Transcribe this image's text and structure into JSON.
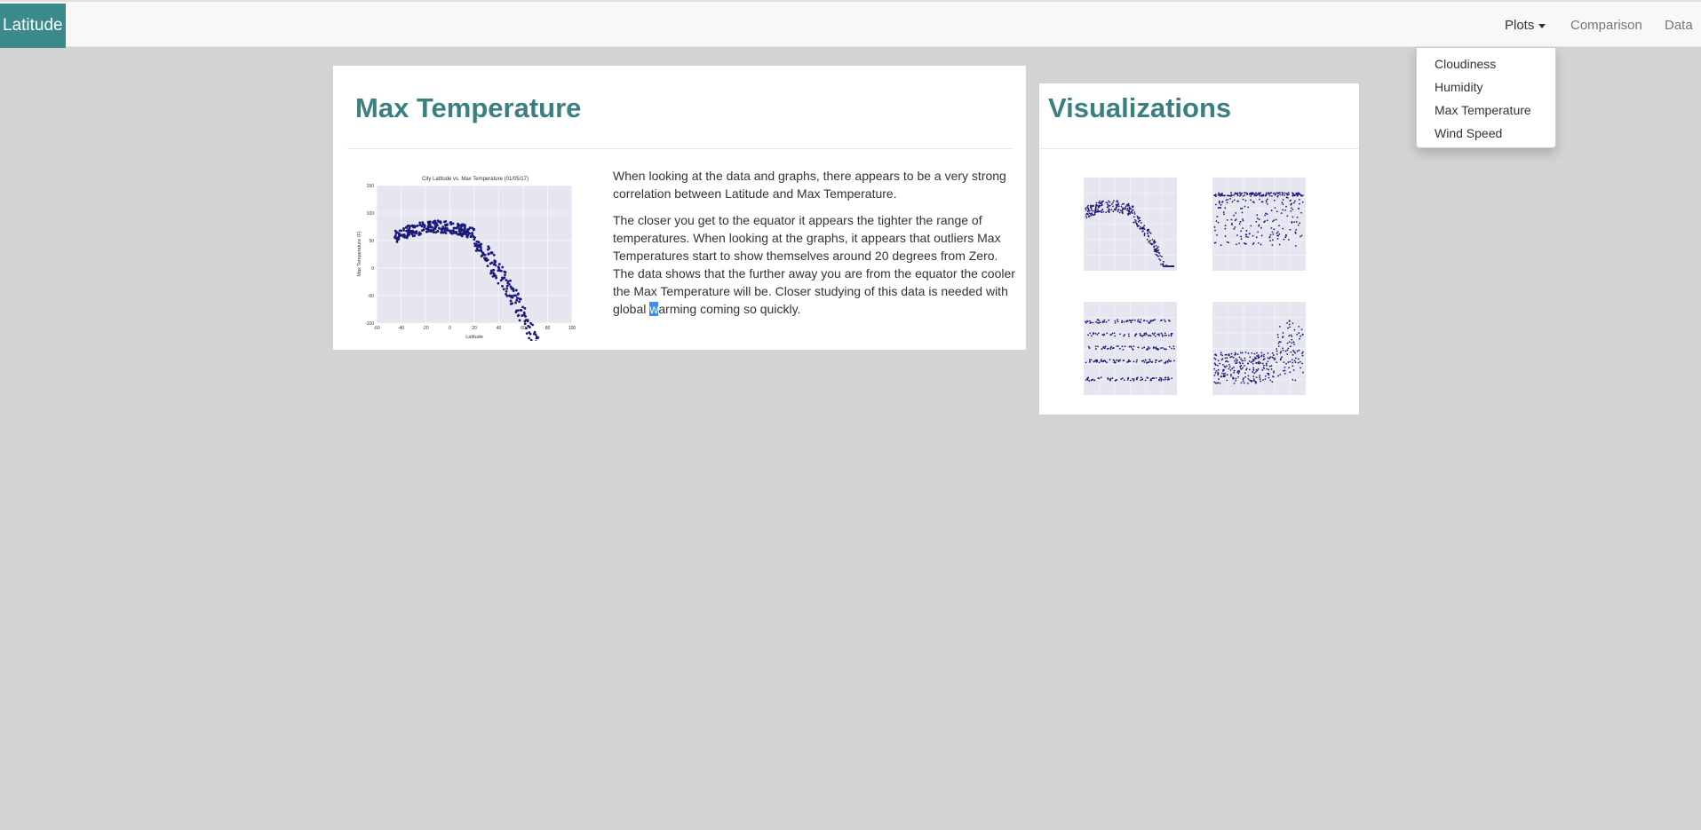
{
  "navbar": {
    "brand": "Latitude",
    "plots_label": "Plots",
    "comparison_label": "Comparison",
    "data_label": "Data"
  },
  "dropdown": {
    "items": [
      "Cloudiness",
      "Humidity",
      "Max Temperature",
      "Wind Speed"
    ]
  },
  "main": {
    "title": "Max Temperature",
    "paragraph1": "When looking at the data and graphs, there appears to be a very strong correlation between Latitude and Max Temperature.",
    "paragraph2_before": "The closer you get to the equator it appears the tighter the range of temperatures. When looking at the graphs, it appears that outliers Max Temperatures start to show themselves around 20 degrees from Zero. The data shows that the further away you are from the equator the cooler the Max Temperature will be. Closer studying of this data is needed with global ",
    "paragraph2_selected": "w",
    "paragraph2_after": "arming coming so quickly."
  },
  "visualizations": {
    "title": "Visualizations"
  },
  "chart_data": {
    "type": "scatter",
    "title": "City Latitude vs. Max Temperature (01/05/17)",
    "xlabel": "Latitude",
    "ylabel": "Max Temperature (F)",
    "xlim": [
      -60,
      100
    ],
    "ylim": [
      -100,
      150
    ],
    "xticks": [
      "-60",
      "-40",
      "-20",
      "0",
      "20",
      "40",
      "60",
      "80",
      "100"
    ],
    "yticks": [
      "150",
      "100",
      "50",
      "0",
      "-50",
      "-100"
    ],
    "point_color": "#1a1a7a"
  },
  "colors": {
    "accent": "#3a8a8a",
    "title": "#3a8080",
    "background": "#d3d3d3"
  }
}
